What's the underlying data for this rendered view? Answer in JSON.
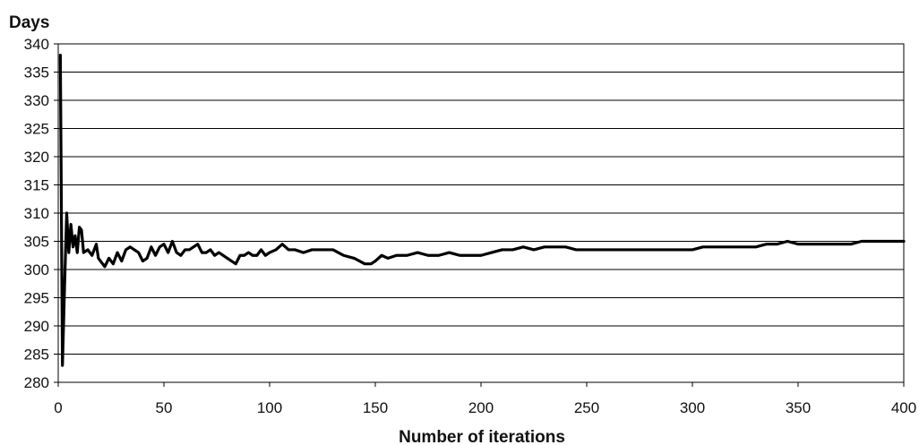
{
  "chart_data": {
    "type": "line",
    "ylabel": "Days",
    "xlabel": "Number of iterations",
    "xlim": [
      0,
      400
    ],
    "ylim": [
      280,
      340
    ],
    "xticks": [
      0,
      50,
      100,
      150,
      200,
      250,
      300,
      350,
      400
    ],
    "yticks": [
      280,
      285,
      290,
      295,
      300,
      305,
      310,
      315,
      320,
      325,
      330,
      335,
      340
    ],
    "grid": "horizontal",
    "legend": "none",
    "series": [
      {
        "color": "#000000",
        "x": [
          1,
          2,
          3,
          4,
          5,
          6,
          7,
          8,
          9,
          10,
          11,
          12,
          14,
          16,
          18,
          19,
          20,
          22,
          24,
          26,
          28,
          30,
          32,
          34,
          36,
          38,
          40,
          42,
          44,
          46,
          48,
          50,
          52,
          54,
          56,
          58,
          60,
          62,
          64,
          66,
          68,
          70,
          72,
          74,
          76,
          78,
          80,
          82,
          84,
          86,
          88,
          90,
          92,
          94,
          96,
          98,
          100,
          103,
          106,
          109,
          112,
          116,
          120,
          125,
          130,
          135,
          140,
          145,
          148,
          150,
          153,
          156,
          160,
          165,
          170,
          175,
          180,
          185,
          190,
          195,
          200,
          205,
          210,
          215,
          220,
          225,
          230,
          235,
          240,
          245,
          250,
          255,
          260,
          265,
          270,
          275,
          280,
          285,
          290,
          295,
          300,
          305,
          310,
          315,
          320,
          325,
          330,
          335,
          340,
          345,
          350,
          355,
          360,
          365,
          370,
          375,
          380,
          385,
          390,
          395,
          400
        ],
        "y": [
          338,
          283,
          297,
          310,
          303,
          308,
          304,
          306,
          303,
          307.5,
          307,
          303,
          303.5,
          302.5,
          304.5,
          302,
          301.5,
          300.5,
          302,
          301,
          303,
          301.5,
          303.5,
          304,
          303.5,
          303,
          301.5,
          302,
          304,
          302.5,
          304,
          304.5,
          303,
          305,
          303,
          302.5,
          303.5,
          303.5,
          304,
          304.5,
          303,
          303,
          303.5,
          302.5,
          303,
          302.5,
          302,
          301.5,
          301,
          302.5,
          302.5,
          303,
          302.5,
          302.5,
          303.5,
          302.5,
          303,
          303.5,
          304.5,
          303.5,
          303.5,
          303,
          303.5,
          303.5,
          303.5,
          302.5,
          302,
          301,
          301,
          301.5,
          302.5,
          302,
          302.5,
          302.5,
          303,
          302.5,
          302.5,
          303,
          302.5,
          302.5,
          302.5,
          303,
          303.5,
          303.5,
          304,
          303.5,
          304,
          304,
          304,
          303.5,
          303.5,
          303.5,
          303.5,
          303.5,
          303.5,
          303.5,
          303.5,
          303.5,
          303.5,
          303.5,
          303.5,
          304,
          304,
          304,
          304,
          304,
          304,
          304.5,
          304.5,
          305,
          304.5,
          304.5,
          304.5,
          304.5,
          304.5,
          304.5,
          305,
          305,
          305,
          305,
          305
        ]
      }
    ]
  }
}
